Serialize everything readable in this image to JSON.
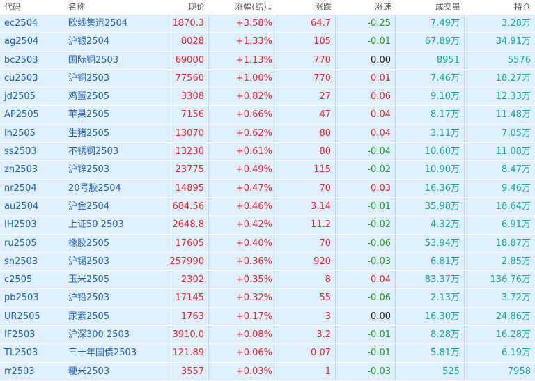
{
  "header": {
    "code": "代码",
    "name": "名称",
    "price": "现价",
    "pct": "涨幅(结)",
    "pct_sort": "↓",
    "chg": "涨跌",
    "speed": "涨速",
    "volume": "成交量",
    "oi": "持仓"
  },
  "colors": {
    "up": "#e8212b",
    "down": "#1a9b1a",
    "flat": "#222222",
    "link": "#1f5fb0",
    "volume": "#11a3a3",
    "row_bg": "#dfeffb"
  },
  "rows": [
    {
      "code": "ec2504",
      "name": "欧线集运2504",
      "price": "1870.3",
      "pct": "+3.58%",
      "chg": "64.7",
      "speed": "-0.25",
      "volume": "7.49万",
      "oi": "3.28万"
    },
    {
      "code": "ag2504",
      "name": "沪银2504",
      "price": "8028",
      "pct": "+1.33%",
      "chg": "105",
      "speed": "-0.01",
      "volume": "67.89万",
      "oi": "34.91万"
    },
    {
      "code": "bc2503",
      "name": "国际铜2503",
      "price": "69000",
      "pct": "+1.13%",
      "chg": "770",
      "speed": "0.00",
      "volume": "8951",
      "oi": "5576"
    },
    {
      "code": "cu2503",
      "name": "沪铜2503",
      "price": "77560",
      "pct": "+1.00%",
      "chg": "770",
      "speed": "0.01",
      "volume": "7.46万",
      "oi": "18.27万"
    },
    {
      "code": "jd2505",
      "name": "鸡蛋2505",
      "price": "3308",
      "pct": "+0.82%",
      "chg": "27",
      "speed": "0.06",
      "volume": "9.10万",
      "oi": "12.33万"
    },
    {
      "code": "AP2505",
      "name": "苹果2505",
      "price": "7156",
      "pct": "+0.66%",
      "chg": "47",
      "speed": "0.04",
      "volume": "8.17万",
      "oi": "11.48万"
    },
    {
      "code": "lh2505",
      "name": "生猪2505",
      "price": "13070",
      "pct": "+0.62%",
      "chg": "80",
      "speed": "0.04",
      "volume": "3.11万",
      "oi": "7.05万"
    },
    {
      "code": "ss2503",
      "name": "不锈钢2503",
      "price": "13230",
      "pct": "+0.61%",
      "chg": "80",
      "speed": "-0.04",
      "volume": "10.60万",
      "oi": "11.08万"
    },
    {
      "code": "zn2503",
      "name": "沪锌2503",
      "price": "23775",
      "pct": "+0.49%",
      "chg": "115",
      "speed": "-0.02",
      "volume": "10.90万",
      "oi": "8.47万"
    },
    {
      "code": "nr2504",
      "name": "20号胶2504",
      "price": "14895",
      "pct": "+0.47%",
      "chg": "70",
      "speed": "0.03",
      "volume": "16.36万",
      "oi": "9.46万"
    },
    {
      "code": "au2504",
      "name": "沪金2504",
      "price": "684.56",
      "pct": "+0.46%",
      "chg": "3.14",
      "speed": "-0.01",
      "volume": "35.98万",
      "oi": "18.64万"
    },
    {
      "code": "IH2503",
      "name": "上证50 2503",
      "price": "2648.8",
      "pct": "+0.42%",
      "chg": "11.2",
      "speed": "-0.02",
      "volume": "4.32万",
      "oi": "6.91万"
    },
    {
      "code": "ru2505",
      "name": "橡胶2505",
      "price": "17605",
      "pct": "+0.40%",
      "chg": "70",
      "speed": "-0.06",
      "volume": "53.94万",
      "oi": "18.87万"
    },
    {
      "code": "sn2503",
      "name": "沪锡2503",
      "price": "257990",
      "pct": "+0.36%",
      "chg": "920",
      "speed": "-0.03",
      "volume": "6.81万",
      "oi": "2.85万"
    },
    {
      "code": "c2505",
      "name": "玉米2505",
      "price": "2302",
      "pct": "+0.35%",
      "chg": "8",
      "speed": "0.04",
      "volume": "83.37万",
      "oi": "136.76万"
    },
    {
      "code": "pb2503",
      "name": "沪铅2503",
      "price": "17145",
      "pct": "+0.32%",
      "chg": "55",
      "speed": "-0.06",
      "volume": "2.13万",
      "oi": "3.72万"
    },
    {
      "code": "UR2505",
      "name": "尿素2505",
      "price": "1763",
      "pct": "+0.17%",
      "chg": "3",
      "speed": "0.00",
      "volume": "16.30万",
      "oi": "24.86万"
    },
    {
      "code": "IF2503",
      "name": "沪深300 2503",
      "price": "3910.0",
      "pct": "+0.08%",
      "chg": "3.2",
      "speed": "-0.01",
      "volume": "8.28万",
      "oi": "16.28万"
    },
    {
      "code": "TL2503",
      "name": "三十年国债2503",
      "price": "121.89",
      "pct": "+0.06%",
      "chg": "0.07",
      "speed": "-0.01",
      "volume": "5.81万",
      "oi": "6.19万"
    },
    {
      "code": "rr2503",
      "name": "粳米2503",
      "price": "3557",
      "pct": "+0.03%",
      "chg": "1",
      "speed": "-0.03",
      "volume": "525",
      "oi": "7958"
    }
  ]
}
